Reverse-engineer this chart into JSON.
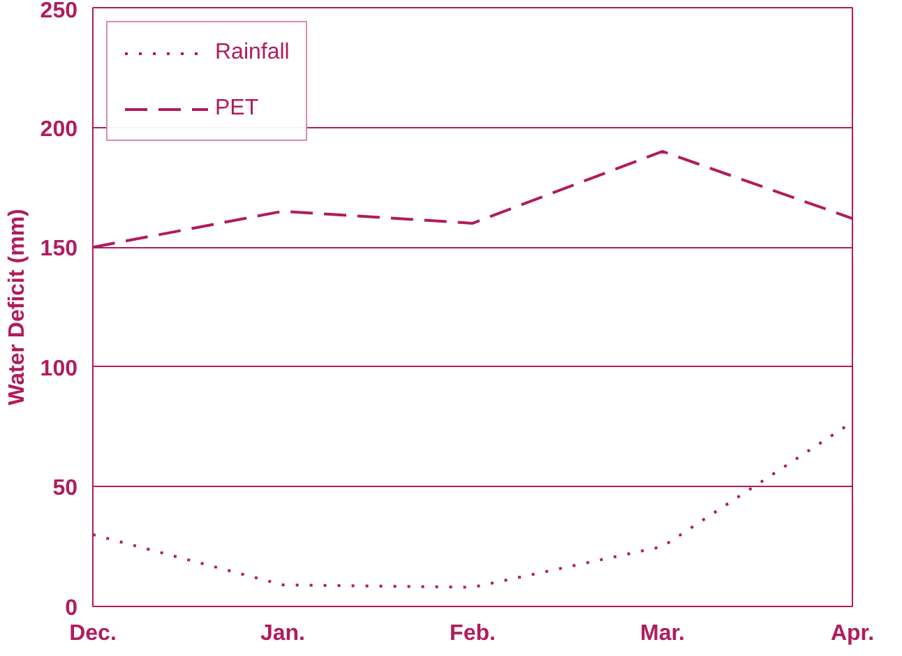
{
  "chart_data": {
    "type": "line",
    "ylabel": "Water Deficit (mm)",
    "categories": [
      "Dec.",
      "Jan.",
      "Feb.",
      "Mar.",
      "Apr."
    ],
    "ylim": [
      0,
      250
    ],
    "yticks": [
      0,
      50,
      100,
      150,
      200,
      250
    ],
    "grid": "y",
    "legend": "top left",
    "series": [
      {
        "name": "Rainfall",
        "color": "#b01c5c",
        "line_style": "dotted",
        "values": [
          30,
          9,
          8,
          25,
          77
        ]
      },
      {
        "name": "PET",
        "color": "#b01c5c",
        "line_style": "dashed",
        "values": [
          150,
          165,
          160,
          190,
          162
        ]
      }
    ]
  }
}
